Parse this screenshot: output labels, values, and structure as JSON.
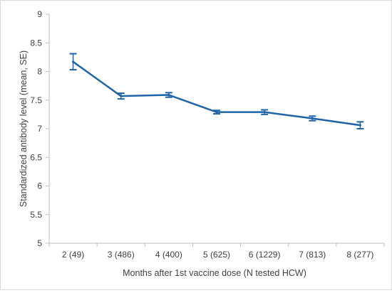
{
  "chart_data": {
    "type": "line",
    "title": "",
    "xlabel": "Months after 1st vaccine dose (N tested HCW)",
    "ylabel": "Standardized antibody level (mean, SE)",
    "categories": [
      "2 (49)",
      "3 (486)",
      "4 (400)",
      "5 (625)",
      "6 (1229)",
      "7 (813)",
      "8 (277)"
    ],
    "yticks": [
      "5",
      "5.5",
      "6",
      "6.5",
      "7",
      "7.5",
      "8",
      "8.5",
      "9"
    ],
    "ylim": [
      5,
      9
    ],
    "grid": false,
    "legend": "none",
    "series": [
      {
        "values": [
          8.17,
          7.57,
          7.59,
          7.29,
          7.29,
          7.18,
          7.06
        ],
        "error": [
          0.14,
          0.05,
          0.04,
          0.03,
          0.04,
          0.04,
          0.06
        ],
        "color": "#1f64a8"
      }
    ]
  }
}
